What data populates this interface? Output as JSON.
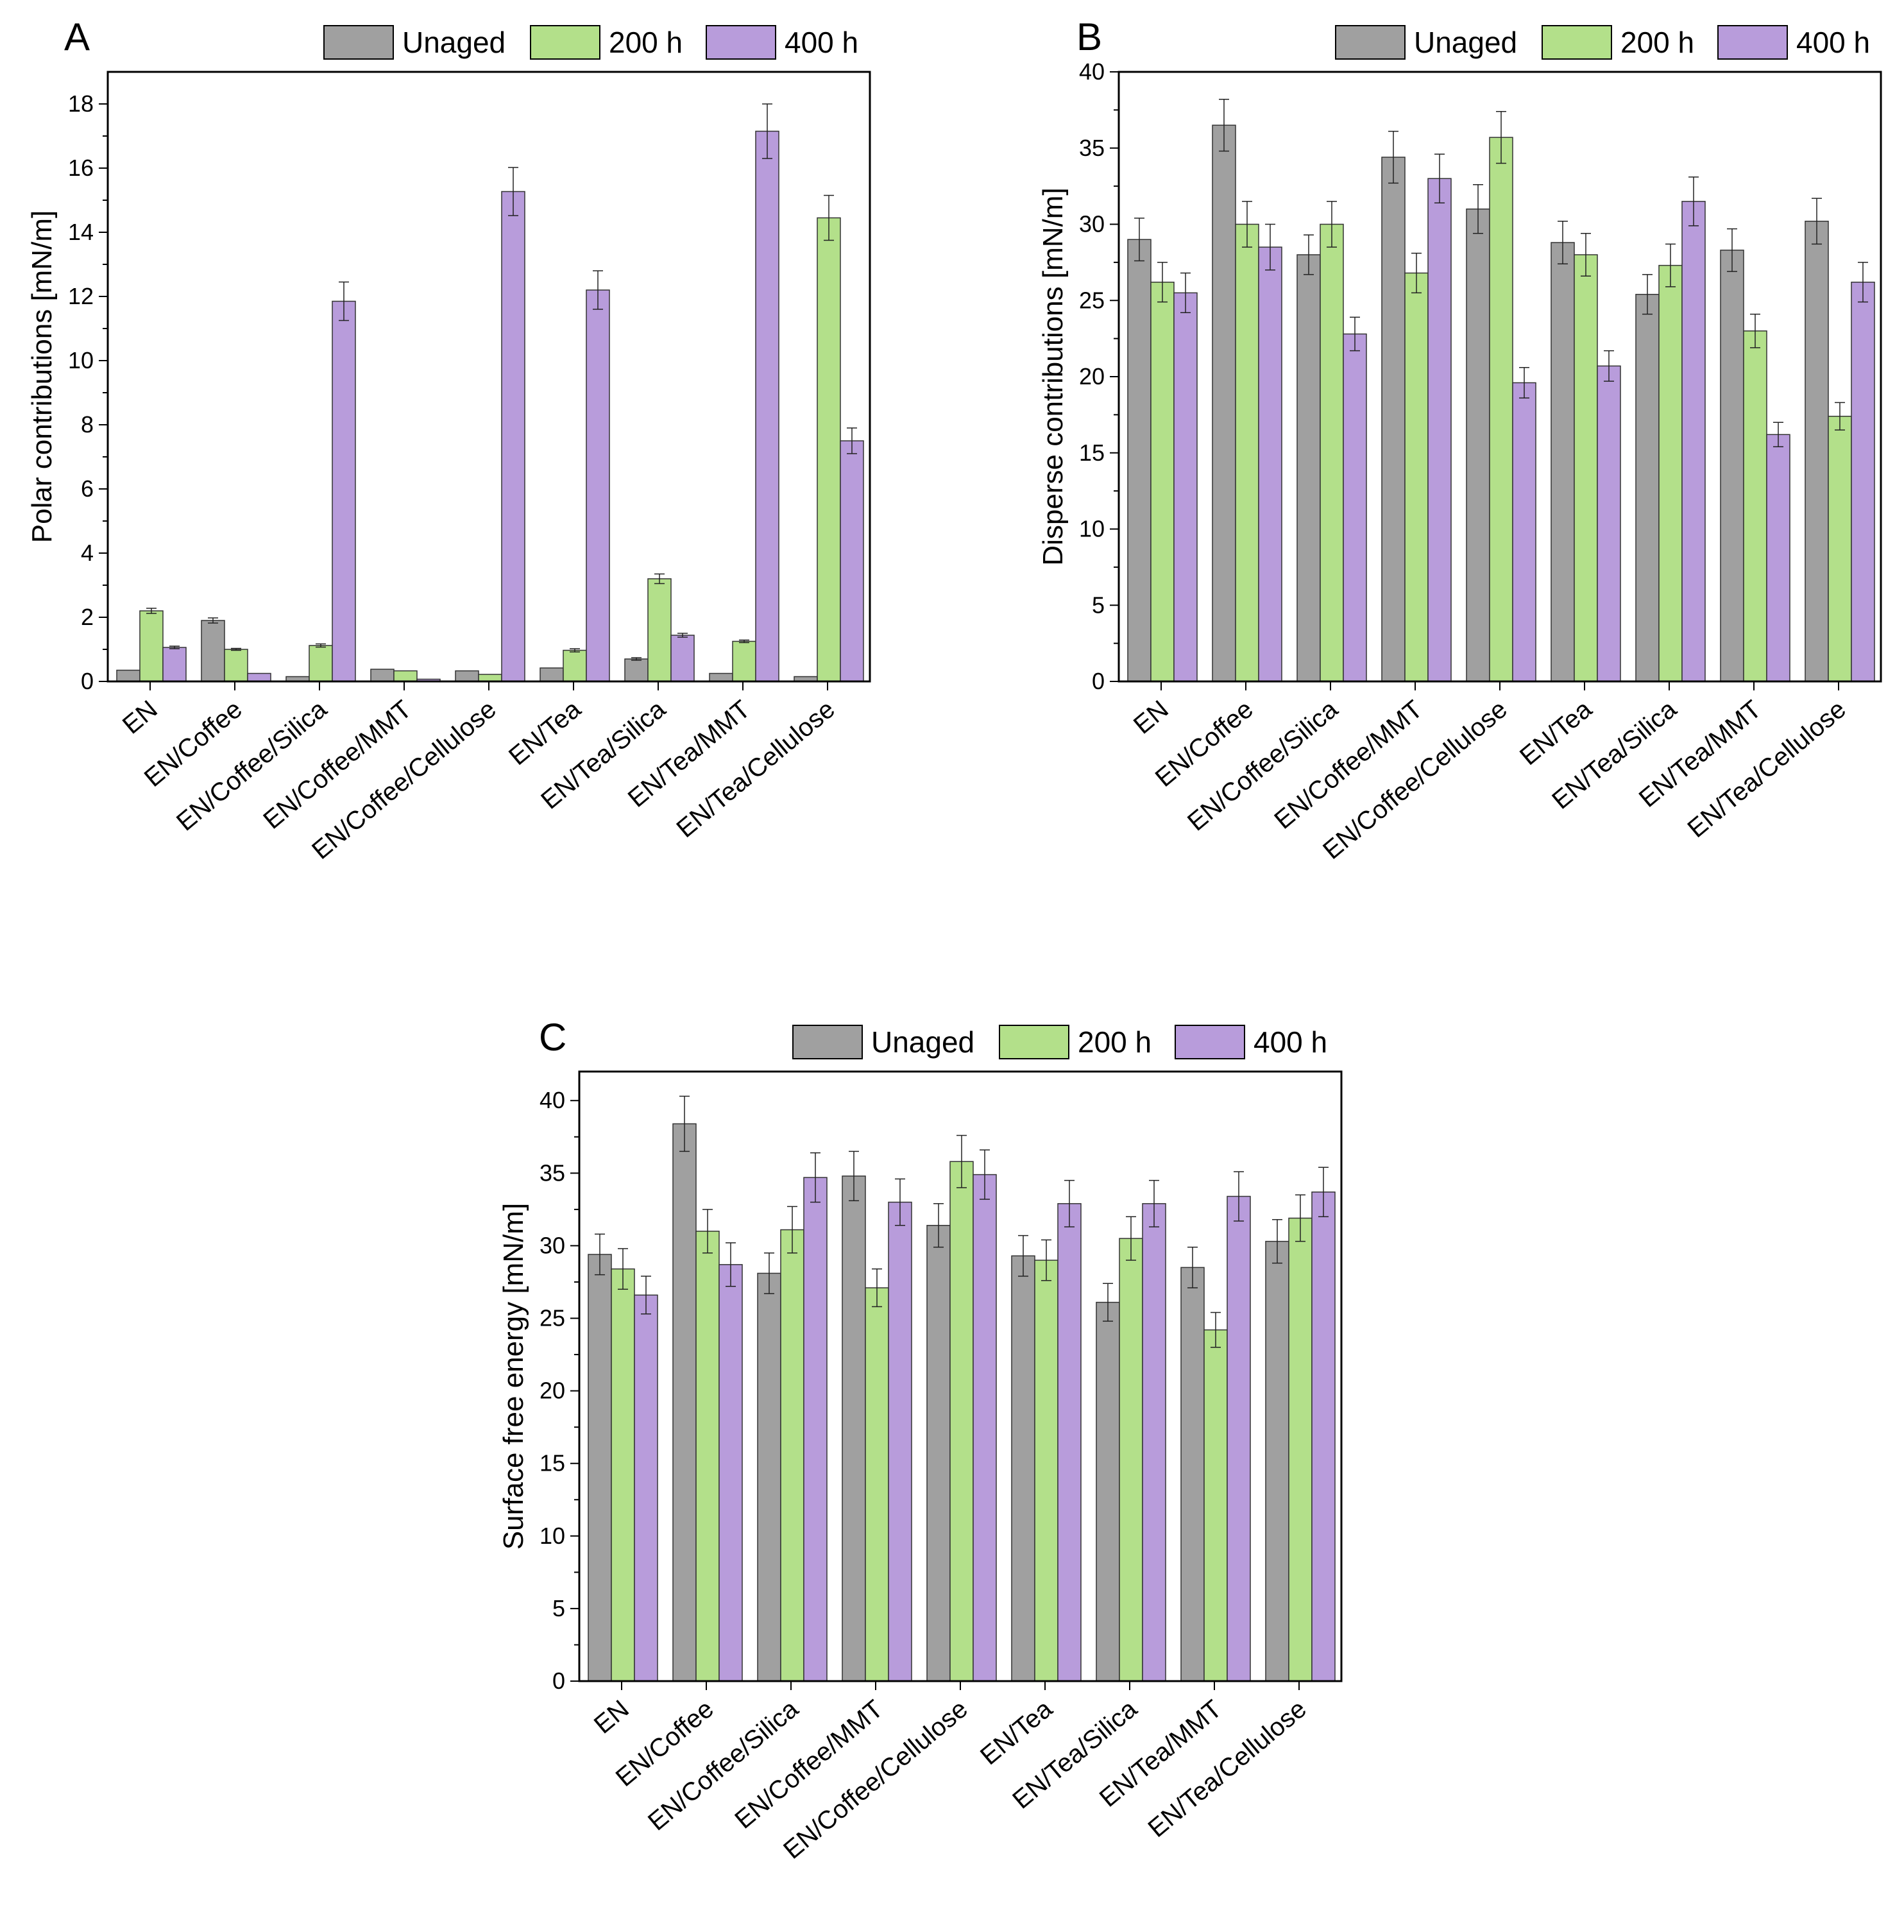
{
  "colors": {
    "unaged": "#a0a0a0",
    "h200": "#b3e08a",
    "h400": "#b89cdb",
    "axis": "#000000"
  },
  "legend": [
    "Unaged",
    "200 h",
    "400 h"
  ],
  "categories": [
    "EN",
    "EN/Coffee",
    "EN/Coffee/Silica",
    "EN/Coffee/MMT",
    "EN/Coffee/Cellulose",
    "EN/Tea",
    "EN/Tea/Silica",
    "EN/Tea/MMT",
    "EN/Tea/Cellulose"
  ],
  "chart_data": [
    {
      "panel": "A",
      "type": "bar",
      "ylabel": "Polar contributions  [mN/m]",
      "xlabel": "",
      "ylim": [
        0,
        19
      ],
      "yticks": [
        0,
        2,
        4,
        6,
        8,
        10,
        12,
        14,
        16,
        18
      ],
      "categories": [
        "EN",
        "EN/Coffee",
        "EN/Coffee/Silica",
        "EN/Coffee/MMT",
        "EN/Coffee/Cellulose",
        "EN/Tea",
        "EN/Tea/Silica",
        "EN/Tea/MMT",
        "EN/Tea/Cellulose"
      ],
      "legend_position": "top-right",
      "series": [
        {
          "name": "Unaged",
          "values": [
            0.35,
            1.9,
            0.15,
            0.38,
            0.33,
            0.42,
            0.7,
            0.25,
            0.15
          ],
          "errors": [
            0,
            0.08,
            0,
            0,
            0,
            0,
            0.04,
            0,
            0
          ]
        },
        {
          "name": "200 h",
          "values": [
            2.2,
            1.0,
            1.12,
            0.33,
            0.22,
            0.97,
            3.2,
            1.25,
            14.45
          ],
          "errors": [
            0.08,
            0.03,
            0.05,
            0,
            0,
            0.05,
            0.15,
            0.04,
            0.7
          ]
        },
        {
          "name": "400 h",
          "values": [
            1.06,
            0.25,
            11.85,
            0.07,
            15.27,
            12.2,
            1.44,
            17.15,
            7.5
          ],
          "errors": [
            0.04,
            0,
            0.6,
            0,
            0.75,
            0.6,
            0.06,
            0.85,
            0.4
          ]
        }
      ]
    },
    {
      "panel": "B",
      "type": "bar",
      "ylabel": "Disperse contributions  [mN/m]",
      "xlabel": "",
      "ylim": [
        0,
        40
      ],
      "yticks": [
        0,
        5,
        10,
        15,
        20,
        25,
        30,
        35,
        40
      ],
      "categories": [
        "EN",
        "EN/Coffee",
        "EN/Coffee/Silica",
        "EN/Coffee/MMT",
        "EN/Coffee/Cellulose",
        "EN/Tea",
        "EN/Tea/Silica",
        "EN/Tea/MMT",
        "EN/Tea/Cellulose"
      ],
      "legend_position": "top-right",
      "series": [
        {
          "name": "Unaged",
          "values": [
            29.0,
            36.5,
            28.0,
            34.4,
            31.0,
            28.8,
            25.4,
            28.3,
            30.2
          ],
          "errors": [
            1.4,
            1.7,
            1.3,
            1.7,
            1.6,
            1.4,
            1.3,
            1.4,
            1.5
          ]
        },
        {
          "name": "200 h",
          "values": [
            26.2,
            30.0,
            30.0,
            26.8,
            35.7,
            28.0,
            27.3,
            23.0,
            17.4
          ],
          "errors": [
            1.3,
            1.5,
            1.5,
            1.3,
            1.7,
            1.4,
            1.4,
            1.1,
            0.9
          ]
        },
        {
          "name": "400 h",
          "values": [
            25.5,
            28.5,
            22.8,
            33.0,
            19.6,
            20.7,
            31.5,
            16.2,
            26.2
          ],
          "errors": [
            1.3,
            1.5,
            1.1,
            1.6,
            1.0,
            1.0,
            1.6,
            0.8,
            1.3
          ]
        }
      ]
    },
    {
      "panel": "C",
      "type": "bar",
      "ylabel": "Surface free energy  [mN/m]",
      "xlabel": "",
      "ylim": [
        0,
        42
      ],
      "yticks": [
        0,
        5,
        10,
        15,
        20,
        25,
        30,
        35,
        40
      ],
      "categories": [
        "EN",
        "EN/Coffee",
        "EN/Coffee/Silica",
        "EN/Coffee/MMT",
        "EN/Coffee/Cellulose",
        "EN/Tea",
        "EN/Tea/Silica",
        "EN/Tea/MMT",
        "EN/Tea/Cellulose"
      ],
      "legend_position": "top-right",
      "series": [
        {
          "name": "Unaged",
          "values": [
            29.4,
            38.4,
            28.1,
            34.8,
            31.4,
            29.3,
            26.1,
            28.5,
            30.3
          ],
          "errors": [
            1.4,
            1.9,
            1.4,
            1.7,
            1.5,
            1.4,
            1.3,
            1.4,
            1.5
          ]
        },
        {
          "name": "200 h",
          "values": [
            28.4,
            31.0,
            31.1,
            27.1,
            35.8,
            29.0,
            30.5,
            24.2,
            31.9
          ],
          "errors": [
            1.4,
            1.5,
            1.6,
            1.3,
            1.8,
            1.4,
            1.5,
            1.2,
            1.6
          ]
        },
        {
          "name": "400 h",
          "values": [
            26.6,
            28.7,
            34.7,
            33.0,
            34.9,
            32.9,
            32.9,
            33.4,
            33.7
          ],
          "errors": [
            1.3,
            1.5,
            1.7,
            1.6,
            1.7,
            1.6,
            1.6,
            1.7,
            1.7
          ]
        }
      ]
    }
  ]
}
